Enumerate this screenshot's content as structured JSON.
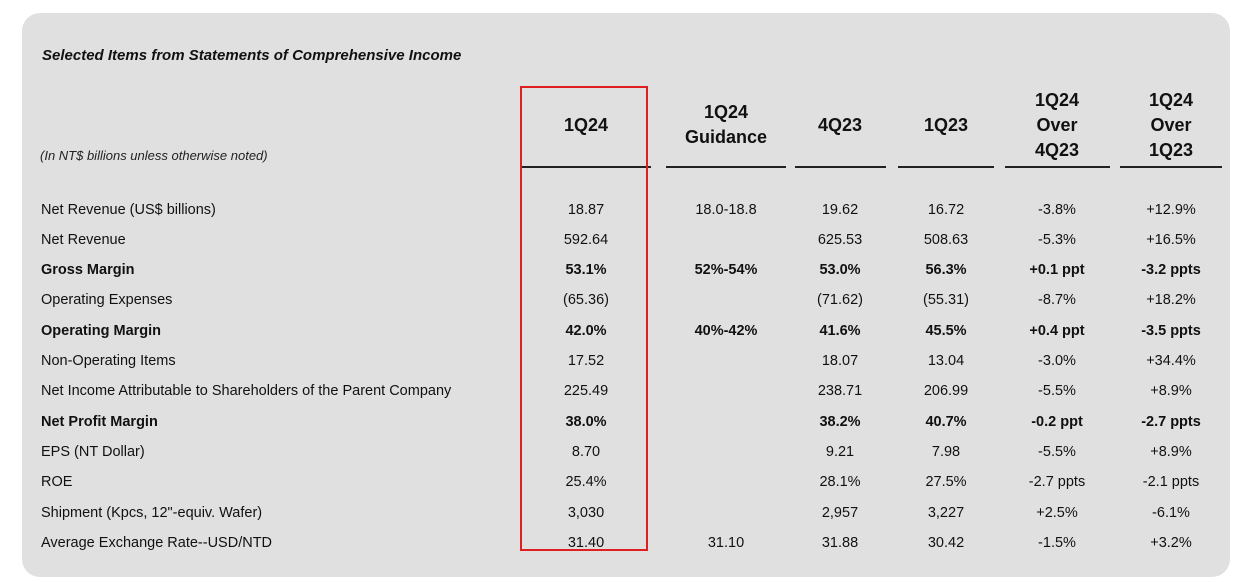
{
  "title": "Selected Items from Statements of Comprehensive Income",
  "units_note": "(In NT$ billions unless otherwise noted)",
  "columns": [
    {
      "lines": [
        "1Q24"
      ]
    },
    {
      "lines": [
        "1Q24",
        "Guidance"
      ]
    },
    {
      "lines": [
        "4Q23"
      ]
    },
    {
      "lines": [
        "1Q23"
      ]
    },
    {
      "lines": [
        "1Q24",
        "Over",
        "4Q23"
      ]
    },
    {
      "lines": [
        "1Q24",
        "Over",
        "1Q23"
      ]
    }
  ],
  "rows": [
    {
      "label": "Net Revenue (US$ billions)",
      "bold": false,
      "values": [
        "18.87",
        "18.0-18.8",
        "19.62",
        "16.72",
        "-3.8%",
        "+12.9%"
      ]
    },
    {
      "label": "Net Revenue",
      "bold": false,
      "values": [
        "592.64",
        "",
        "625.53",
        "508.63",
        "-5.3%",
        "+16.5%"
      ]
    },
    {
      "label": "Gross Margin",
      "bold": true,
      "values": [
        "53.1%",
        "52%-54%",
        "53.0%",
        "56.3%",
        "+0.1 ppt",
        "-3.2 ppts"
      ]
    },
    {
      "label": "Operating Expenses",
      "bold": false,
      "values": [
        "(65.36)",
        "",
        "(71.62)",
        "(55.31)",
        "-8.7%",
        "+18.2%"
      ]
    },
    {
      "label": "Operating Margin",
      "bold": true,
      "values": [
        "42.0%",
        "40%-42%",
        "41.6%",
        "45.5%",
        "+0.4 ppt",
        "-3.5 ppts"
      ]
    },
    {
      "label": "Non-Operating Items",
      "bold": false,
      "values": [
        "17.52",
        "",
        "18.07",
        "13.04",
        "-3.0%",
        "+34.4%"
      ]
    },
    {
      "label": "Net Income Attributable to Shareholders of the Parent Company",
      "bold": false,
      "values": [
        "225.49",
        "",
        "238.71",
        "206.99",
        "-5.5%",
        "+8.9%"
      ]
    },
    {
      "label": "Net Profit Margin",
      "bold": true,
      "values": [
        "38.0%",
        "",
        "38.2%",
        "40.7%",
        "-0.2 ppt",
        "-2.7 ppts"
      ]
    },
    {
      "label": "EPS (NT Dollar)",
      "bold": false,
      "values": [
        "8.70",
        "",
        "9.21",
        "7.98",
        "-5.5%",
        "+8.9%"
      ]
    },
    {
      "label": "ROE",
      "bold": false,
      "values": [
        "25.4%",
        "",
        "28.1%",
        "27.5%",
        "-2.7 ppts",
        "-2.1 ppts"
      ]
    },
    {
      "label": "Shipment (Kpcs, 12\"-equiv. Wafer)",
      "bold": false,
      "values": [
        "3,030",
        "",
        "2,957",
        "3,227",
        "+2.5%",
        "-6.1%"
      ]
    },
    {
      "label": "Average Exchange Rate--USD/NTD",
      "bold": false,
      "values": [
        "31.40",
        "31.10",
        "31.88",
        "30.42",
        "-1.5%",
        "+3.2%"
      ]
    }
  ],
  "colors": {
    "card_bg": "#e0e0e0",
    "highlight_border": "#e02020",
    "text": "#111111"
  }
}
